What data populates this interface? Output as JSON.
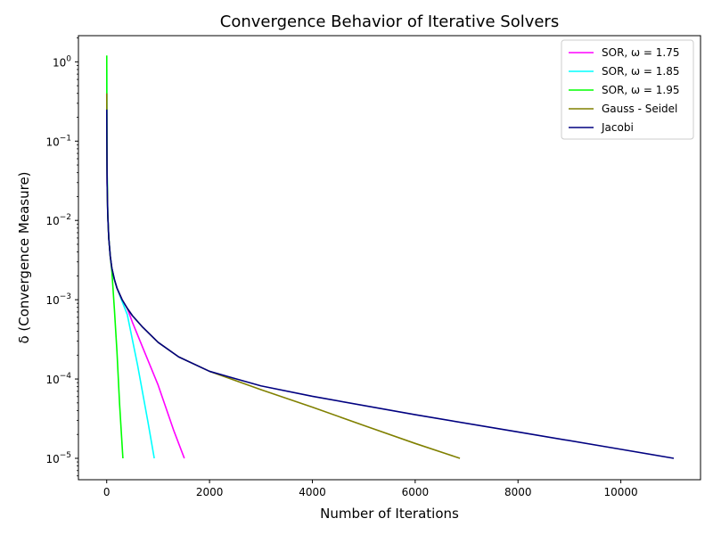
{
  "chart_data": {
    "type": "line",
    "title": "Convergence Behavior of Iterative Solvers",
    "xlabel": "Number of Iterations",
    "ylabel": "δ (Convergence Measure)",
    "xlim": [
      -550,
      11550
    ],
    "ylim_log10": [
      -5.27,
      0.33
    ],
    "y_scale": "log",
    "grid": false,
    "legend_position": "top-right",
    "x_ticks": [
      0,
      2000,
      4000,
      6000,
      8000,
      10000
    ],
    "x_tick_labels": [
      "0",
      "2000",
      "4000",
      "6000",
      "8000",
      "10000"
    ],
    "y_ticks_log10": [
      0,
      -1,
      -2,
      -3,
      -4,
      -5
    ],
    "y_tick_labels": [
      {
        "base": "10",
        "exp": "0"
      },
      {
        "base": "10",
        "exp": "−1"
      },
      {
        "base": "10",
        "exp": "−2"
      },
      {
        "base": "10",
        "exp": "−3"
      },
      {
        "base": "10",
        "exp": "−4"
      },
      {
        "base": "10",
        "exp": "−5"
      }
    ],
    "series": [
      {
        "name": "SOR, ω = 1.75",
        "color": "#ff00ff",
        "points": [
          [
            1,
            0.4
          ],
          [
            3,
            0.1
          ],
          [
            8,
            0.03
          ],
          [
            20,
            0.012
          ],
          [
            40,
            0.006
          ],
          [
            70,
            0.0035
          ],
          [
            100,
            0.0025
          ],
          [
            150,
            0.0018
          ],
          [
            200,
            0.0014
          ],
          [
            300,
            0.001
          ],
          [
            400,
            0.00078
          ],
          [
            500,
            0.00052
          ],
          [
            700,
            0.00025
          ],
          [
            1000,
            8.39e-05
          ],
          [
            1300,
            2.28e-05
          ],
          [
            1510,
            1e-05
          ]
        ]
      },
      {
        "name": "SOR, ω = 1.85",
        "color": "#00ffff",
        "points": [
          [
            1,
            0.8
          ],
          [
            3,
            0.15
          ],
          [
            8,
            0.04
          ],
          [
            20,
            0.012
          ],
          [
            40,
            0.006
          ],
          [
            70,
            0.0035
          ],
          [
            100,
            0.0025
          ],
          [
            150,
            0.0018
          ],
          [
            200,
            0.0014
          ],
          [
            300,
            0.00095
          ],
          [
            400,
            0.00065
          ],
          [
            600,
            0.00015
          ],
          [
            800,
            2.93e-05
          ],
          [
            925,
            1e-05
          ]
        ]
      },
      {
        "name": "SOR, ω = 1.95",
        "color": "#00ff00",
        "points": [
          [
            1,
            1.2
          ],
          [
            3,
            0.2
          ],
          [
            8,
            0.04
          ],
          [
            20,
            0.012
          ],
          [
            40,
            0.006
          ],
          [
            70,
            0.0035
          ],
          [
            100,
            0.0023
          ],
          [
            150,
            0.00075
          ],
          [
            200,
            0.000219
          ],
          [
            250,
            4.9e-05
          ],
          [
            315,
            1e-05
          ]
        ]
      },
      {
        "name": "Gauss - Seidel",
        "color": "#808000",
        "points": [
          [
            1,
            0.4
          ],
          [
            3,
            0.1
          ],
          [
            8,
            0.03
          ],
          [
            20,
            0.012
          ],
          [
            40,
            0.006
          ],
          [
            70,
            0.0035
          ],
          [
            100,
            0.0025
          ],
          [
            150,
            0.0018
          ],
          [
            200,
            0.0014
          ],
          [
            300,
            0.001
          ],
          [
            400,
            0.00078
          ],
          [
            500,
            0.00063
          ],
          [
            700,
            0.00045
          ],
          [
            1000,
            0.00029
          ],
          [
            1400,
            0.00019
          ],
          [
            2000,
            0.000125
          ],
          [
            3000,
            7.35e-05
          ],
          [
            4000,
            4.41e-05
          ],
          [
            5000,
            2.6e-05
          ],
          [
            6000,
            1.54e-05
          ],
          [
            6870,
            1e-05
          ]
        ]
      },
      {
        "name": "Jacobi",
        "color": "#000080",
        "points": [
          [
            1,
            0.25
          ],
          [
            3,
            0.1
          ],
          [
            8,
            0.03
          ],
          [
            20,
            0.012
          ],
          [
            40,
            0.006
          ],
          [
            70,
            0.0035
          ],
          [
            100,
            0.0025
          ],
          [
            150,
            0.0018
          ],
          [
            200,
            0.0014
          ],
          [
            300,
            0.001
          ],
          [
            400,
            0.00078
          ],
          [
            500,
            0.00063
          ],
          [
            700,
            0.00045
          ],
          [
            1000,
            0.00029
          ],
          [
            1400,
            0.00019
          ],
          [
            2000,
            0.000125
          ],
          [
            3000,
            8.2e-05
          ],
          [
            4000,
            6.05e-05
          ],
          [
            6000,
            3.55e-05
          ],
          [
            8000,
            2.15e-05
          ],
          [
            10000,
            1.3e-05
          ],
          [
            11030,
            1e-05
          ]
        ]
      }
    ]
  }
}
